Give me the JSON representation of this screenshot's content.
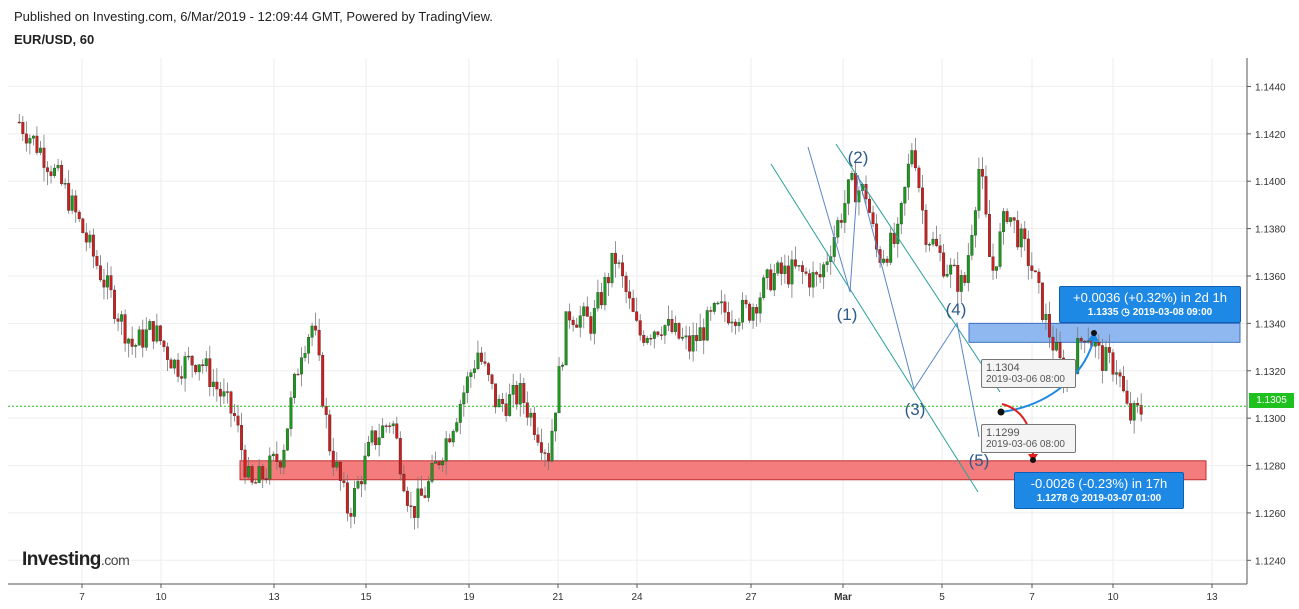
{
  "header": {
    "published": "Published on Investing.com, 6/Mar/2019 - 12:09:44 GMT, Powered by TradingView.",
    "symbol": "EUR/USD, 60"
  },
  "logo": {
    "brand": "Investing",
    "suffix": ".com"
  },
  "chart_data": {
    "type": "candlestick",
    "symbol": "EUR/USD",
    "interval": "60",
    "y_ticks": [
      "1.1240",
      "1.1260",
      "1.1280",
      "1.1300",
      "1.1320",
      "1.1340",
      "1.1360",
      "1.1380",
      "1.1400",
      "1.1420",
      "1.1440"
    ],
    "x_ticks": [
      "7",
      "10",
      "13",
      "15",
      "19",
      "21",
      "24",
      "27",
      "Mar",
      "5",
      "7",
      "10",
      "13"
    ],
    "ylim": [
      1.123,
      1.1452
    ],
    "grid": true,
    "current_price": "1.1305",
    "close_series_keypoints": [
      {
        "day": 5.4,
        "price": 1.1425
      },
      {
        "day": 6.0,
        "price": 1.1412
      },
      {
        "day": 6.6,
        "price": 1.1395
      },
      {
        "day": 7.3,
        "price": 1.1368
      },
      {
        "day": 7.9,
        "price": 1.1345
      },
      {
        "day": 8.3,
        "price": 1.133
      },
      {
        "day": 8.8,
        "price": 1.1338
      },
      {
        "day": 9.4,
        "price": 1.1322
      },
      {
        "day": 10.0,
        "price": 1.1325
      },
      {
        "day": 10.9,
        "price": 1.13
      },
      {
        "day": 11.3,
        "price": 1.127
      },
      {
        "day": 12.1,
        "price": 1.1285
      },
      {
        "day": 12.6,
        "price": 1.133
      },
      {
        "day": 12.9,
        "price": 1.134
      },
      {
        "day": 13.3,
        "price": 1.129
      },
      {
        "day": 13.8,
        "price": 1.126
      },
      {
        "day": 14.4,
        "price": 1.129
      },
      {
        "day": 14.9,
        "price": 1.13
      },
      {
        "day": 15.4,
        "price": 1.126
      },
      {
        "day": 15.8,
        "price": 1.127
      },
      {
        "day": 16.5,
        "price": 1.13
      },
      {
        "day": 17.1,
        "price": 1.1328
      },
      {
        "day": 17.6,
        "price": 1.1305
      },
      {
        "day": 18.2,
        "price": 1.131
      },
      {
        "day": 18.9,
        "price": 1.1285
      },
      {
        "day": 19.4,
        "price": 1.1345
      },
      {
        "day": 20.0,
        "price": 1.134
      },
      {
        "day": 20.6,
        "price": 1.1368
      },
      {
        "day": 21.2,
        "price": 1.1335
      },
      {
        "day": 21.8,
        "price": 1.134
      },
      {
        "day": 22.5,
        "price": 1.133
      },
      {
        "day": 23.2,
        "price": 1.1345
      },
      {
        "day": 24.0,
        "price": 1.1345
      },
      {
        "day": 24.6,
        "price": 1.136
      },
      {
        "day": 25.2,
        "price": 1.1362
      },
      {
        "day": 25.8,
        "price": 1.1358
      },
      {
        "day": 26.6,
        "price": 1.1398
      },
      {
        "day": 27.0,
        "price": 1.1395
      },
      {
        "day": 27.3,
        "price": 1.1368
      },
      {
        "day": 27.8,
        "price": 1.1375
      },
      {
        "day": 28.2,
        "price": 1.1418
      },
      {
        "day": 28.5,
        "price": 1.138
      },
      {
        "day": 29.0,
        "price": 1.1365
      },
      {
        "day": 29.5,
        "price": 1.1355
      },
      {
        "day": 29.9,
        "price": 1.1408
      },
      {
        "day": 30.2,
        "price": 1.136
      },
      {
        "day": 30.6,
        "price": 1.1388
      },
      {
        "day": 31.2,
        "price": 1.1365
      },
      {
        "day": 31.6,
        "price": 1.134
      },
      {
        "day": 32.1,
        "price": 1.1315
      },
      {
        "day": 32.6,
        "price": 1.1338
      },
      {
        "day": 33.0,
        "price": 1.1325
      },
      {
        "day": 33.4,
        "price": 1.1322
      },
      {
        "day": 33.7,
        "price": 1.13
      },
      {
        "day": 34.1,
        "price": 1.1304
      }
    ],
    "resistance_zone": {
      "from": 1.1332,
      "to": 1.134
    },
    "support_zone": {
      "from": 1.1274,
      "to": 1.1282
    },
    "wave_labels": [
      {
        "label": "(1)",
        "day": 29.0,
        "price": 1.135
      },
      {
        "label": "(2)",
        "day": 29.9,
        "price": 1.1408
      },
      {
        "label": "(3)",
        "day": 31.9,
        "price": 1.1312
      },
      {
        "label": "(4)",
        "day": 33.0,
        "price": 1.134
      },
      {
        "label": "(5)",
        "day": 33.5,
        "price": 1.1288
      }
    ]
  },
  "projections": {
    "up": {
      "main": "+0.0036 (+0.32%) in 2d 1h",
      "price": "1.1335",
      "date": "2019-03-08  09:00"
    },
    "down": {
      "main": "-0.0026 (-0.23%) in 17h",
      "price": "1.1278",
      "date": "2019-03-07  01:00"
    },
    "tip_high": {
      "price": "1.1304",
      "date": "2019-03-06 08:00"
    },
    "tip_low": {
      "price": "1.1299",
      "date": "2019-03-06 08:00"
    }
  }
}
